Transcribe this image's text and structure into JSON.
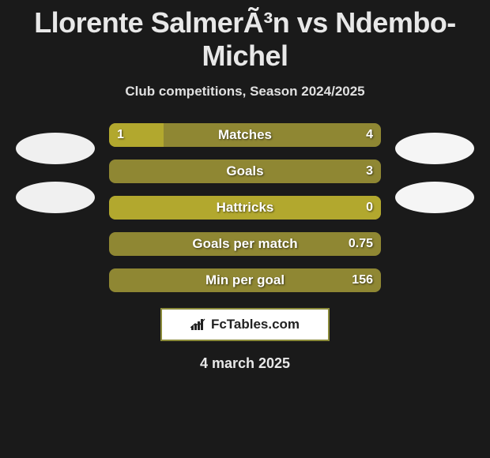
{
  "title": "Llorente SalmerÃ³n vs Ndembo-Michel",
  "subtitle": "Club competitions, Season 2024/2025",
  "date": "4 march 2025",
  "brand": {
    "text": "FcTables.com"
  },
  "colors": {
    "bg": "#1a1a1a",
    "bar_left": "#b2a82e",
    "bar_right": "#8f8733",
    "border": "#8a8a3a",
    "text_light": "#e8e8e8"
  },
  "bars": [
    {
      "label": "Matches",
      "left_val": "1",
      "right_val": "4",
      "left_pct": 20,
      "show_left_val": true,
      "show_right_val": true
    },
    {
      "label": "Goals",
      "left_val": "0",
      "right_val": "3",
      "left_pct": 0,
      "show_left_val": false,
      "show_right_val": true
    },
    {
      "label": "Hattricks",
      "left_val": "0",
      "right_val": "0",
      "left_pct": 100,
      "show_left_val": false,
      "show_right_val": true
    },
    {
      "label": "Goals per match",
      "left_val": "0",
      "right_val": "0.75",
      "left_pct": 0,
      "show_left_val": false,
      "show_right_val": true
    },
    {
      "label": "Min per goal",
      "left_val": "0",
      "right_val": "156",
      "left_pct": 0,
      "show_left_val": false,
      "show_right_val": true
    }
  ]
}
